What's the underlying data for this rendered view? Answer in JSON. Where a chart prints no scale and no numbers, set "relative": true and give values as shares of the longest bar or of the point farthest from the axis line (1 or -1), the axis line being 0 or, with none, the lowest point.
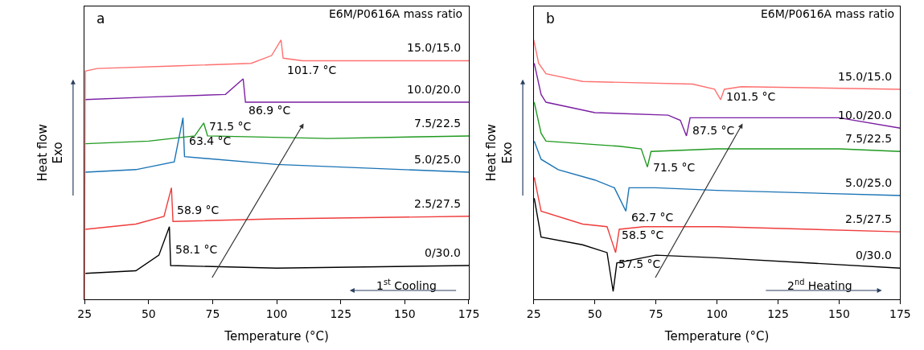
{
  "chart_data": [
    {
      "type": "line",
      "relative": true,
      "xlabel": "Temperature (°C)",
      "ylabel": "Heat flow\nExo",
      "xlim": [
        25,
        175
      ],
      "xticks": [
        25,
        50,
        75,
        100,
        125,
        150,
        175
      ],
      "legend": false,
      "marker": "none",
      "line_style": "solid",
      "series": [
        {
          "name": "15.0/15.0",
          "color": "#ff7070",
          "x": [
            25,
            25.3,
            30,
            60,
            90,
            98,
            101.7,
            102.5,
            110,
            140,
            175
          ],
          "values": [
            0,
            0.88,
            0.89,
            0.9,
            0.91,
            0.94,
            1.0,
            0.93,
            0.92,
            0.92,
            0.92
          ]
        },
        {
          "name": "10.0/20.0",
          "color": "#7b1fa2",
          "x": [
            25.3,
            50,
            80,
            86.9,
            87.8,
            110,
            175
          ],
          "values": [
            0.77,
            0.78,
            0.79,
            0.85,
            0.76,
            0.76,
            0.76
          ]
        },
        {
          "name": "7.5/22.5",
          "color": "#1f9a1f",
          "x": [
            25.3,
            50,
            68,
            71.5,
            73,
            120,
            175
          ],
          "values": [
            0.6,
            0.61,
            0.63,
            0.68,
            0.63,
            0.62,
            0.63
          ]
        },
        {
          "name": "5.0/25.0",
          "color": "#1a73b5",
          "x": [
            25.3,
            45,
            60,
            63.4,
            64,
            100,
            175
          ],
          "values": [
            0.49,
            0.5,
            0.53,
            0.7,
            0.55,
            0.52,
            0.49
          ]
        },
        {
          "name": "2.5/27.5",
          "color": "#f03c3c",
          "x": [
            25.3,
            45,
            56,
            58.9,
            59.5,
            100,
            175
          ],
          "values": [
            0.27,
            0.29,
            0.32,
            0.43,
            0.3,
            0.31,
            0.32
          ]
        },
        {
          "name": "0/30.0",
          "color": "#000000",
          "x": [
            25.3,
            45,
            54,
            58.1,
            58.6,
            100,
            175
          ],
          "values": [
            0.1,
            0.11,
            0.17,
            0.28,
            0.13,
            0.12,
            0.13
          ]
        }
      ],
      "annotations": [
        "a",
        "E6M/P0616A mass ratio",
        "1$^{st}$ Cooling",
        {
          "text": "101.7 °C",
          "x": 101.7,
          "y": 1.0
        },
        {
          "text": "86.9 °C",
          "x": 86.9,
          "y": 0.85
        },
        {
          "text": "71.5 °C",
          "x": 71.5,
          "y": 0.68
        },
        {
          "text": "63.4 °C",
          "x": 63.4,
          "y": 0.7
        },
        {
          "text": "58.9 °C",
          "x": 58.9,
          "y": 0.43
        },
        {
          "text": "58.1 °C",
          "x": 58.1,
          "y": 0.28
        }
      ]
    },
    {
      "type": "line",
      "relative": true,
      "xlabel": "Temperature (°C)",
      "ylabel": "Heat flow\nExo",
      "xlim": [
        25,
        175
      ],
      "xticks": [
        25,
        50,
        75,
        100,
        125,
        150,
        175
      ],
      "legend": false,
      "marker": "none",
      "line_style": "solid",
      "series": [
        {
          "name": "15.0/15.0",
          "color": "#ff7070",
          "x": [
            25,
            27,
            30,
            45,
            90,
            99,
            101.5,
            103,
            110,
            175
          ],
          "values": [
            1.0,
            0.91,
            0.87,
            0.84,
            0.83,
            0.81,
            0.77,
            0.81,
            0.82,
            0.81
          ]
        },
        {
          "name": "10.0/20.0",
          "color": "#7b1fa2",
          "x": [
            25.2,
            28,
            30,
            50,
            80,
            85,
            87.5,
            89,
            100,
            150,
            175
          ],
          "values": [
            0.91,
            0.79,
            0.76,
            0.72,
            0.71,
            0.69,
            0.63,
            0.7,
            0.7,
            0.7,
            0.66
          ]
        },
        {
          "name": "7.5/22.5",
          "color": "#1f9a1f",
          "x": [
            25.2,
            28,
            30,
            60,
            69,
            71.5,
            73,
            100,
            150,
            175
          ],
          "values": [
            0.76,
            0.64,
            0.61,
            0.59,
            0.58,
            0.51,
            0.57,
            0.58,
            0.58,
            0.57
          ]
        },
        {
          "name": "5.0/25.0",
          "color": "#1a73b5",
          "x": [
            25.2,
            28,
            35,
            50,
            58,
            62.7,
            64,
            75,
            100,
            175
          ],
          "values": [
            0.61,
            0.54,
            0.5,
            0.46,
            0.43,
            0.34,
            0.43,
            0.43,
            0.42,
            0.4
          ]
        },
        {
          "name": "2.5/27.5",
          "color": "#f03c3c",
          "x": [
            25.2,
            28,
            45,
            55,
            58.5,
            60,
            70,
            100,
            175
          ],
          "values": [
            0.47,
            0.34,
            0.29,
            0.28,
            0.18,
            0.27,
            0.28,
            0.28,
            0.26
          ]
        },
        {
          "name": "0/30.0",
          "color": "#000000",
          "x": [
            25.2,
            28,
            45,
            55,
            57.5,
            59,
            75,
            100,
            175
          ],
          "values": [
            0.39,
            0.24,
            0.21,
            0.18,
            0.03,
            0.14,
            0.17,
            0.16,
            0.12
          ]
        }
      ],
      "annotations": [
        "b",
        "E6M/P0616A mass ratio",
        "2$^{nd}$ Heating",
        {
          "text": "101.5 °C",
          "x": 101.5,
          "y": 0.77
        },
        {
          "text": "87.5 °C",
          "x": 87.5,
          "y": 0.63
        },
        {
          "text": "71.5 °C",
          "x": 71.5,
          "y": 0.51
        },
        {
          "text": "62.7 °C",
          "x": 62.7,
          "y": 0.34
        },
        {
          "text": "58.5 °C",
          "x": 58.5,
          "y": 0.18
        },
        {
          "text": "57.5 °C",
          "x": 57.5,
          "y": 0.03
        }
      ]
    }
  ]
}
